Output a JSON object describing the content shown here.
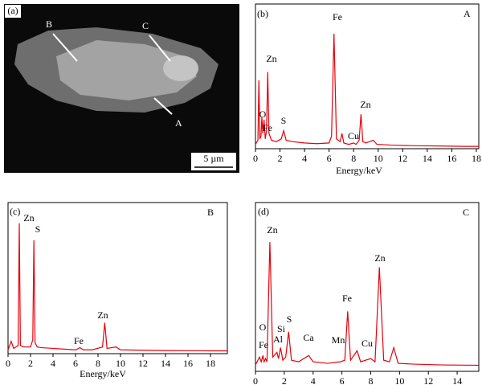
{
  "micrograph": {
    "panel": "(a)",
    "points": [
      "A",
      "B",
      "C"
    ],
    "scale_bar": "5 µm"
  },
  "chart_data": [
    {
      "type": "line",
      "panel": "(b)",
      "title": "A",
      "x_label": "Energy/keV",
      "x": [
        0,
        0.2,
        0.28,
        0.36,
        0.45,
        0.52,
        0.6,
        0.7,
        0.8,
        0.9,
        1.0,
        1.1,
        1.3,
        1.7,
        2.1,
        2.3,
        2.5,
        3,
        4,
        5,
        6,
        6.2,
        6.4,
        6.6,
        6.9,
        7.05,
        7.2,
        7.6,
        8.0,
        8.2,
        8.45,
        8.6,
        8.75,
        9.0,
        9.6,
        9.9,
        11,
        13,
        15,
        17,
        18.2
      ],
      "series": [
        {
          "color": "#e8000b",
          "values": [
            2,
            5,
            49,
            6,
            8,
            22,
            10,
            20,
            6,
            12,
            55,
            10,
            5,
            4,
            6,
            12,
            5,
            4,
            3,
            2.5,
            3,
            8,
            83,
            6,
            4,
            10,
            3,
            2,
            3,
            2,
            5,
            24,
            4,
            3,
            5,
            2,
            1.5,
            1,
            0.8,
            0.5,
            0.5
          ]
        }
      ],
      "peak_labels": [
        "O",
        "Fe",
        "Zn",
        "S",
        "Fe",
        "Cu",
        "Zn"
      ],
      "xlim": [
        0,
        18.2
      ],
      "xticks": [
        0,
        2,
        4,
        6,
        8,
        10,
        12,
        14,
        16,
        18
      ],
      "ylim": [
        0,
        100
      ]
    },
    {
      "type": "line",
      "panel": "(c)",
      "title": "B",
      "x_label": "Energy/keV",
      "x": [
        0,
        0.28,
        0.5,
        0.9,
        1.0,
        1.1,
        1.4,
        2.0,
        2.2,
        2.3,
        2.4,
        2.6,
        3,
        4,
        5,
        6,
        6.4,
        6.7,
        7.5,
        8.4,
        8.6,
        8.8,
        9.6,
        10,
        12,
        14,
        16,
        18,
        19.5
      ],
      "series": [
        {
          "color": "#e8000b",
          "values": [
            1,
            7,
            2,
            4,
            90,
            4,
            3,
            3,
            8,
            78,
            6,
            3,
            2.5,
            2,
            1.5,
            1,
            2.5,
            1,
            1,
            3,
            20,
            2,
            3,
            1,
            0.7,
            0.5,
            0.4,
            0.3,
            0.3
          ]
        }
      ],
      "peak_labels": [
        "Zn",
        "S",
        "Fe",
        "Zn"
      ],
      "xlim": [
        0,
        19.5
      ],
      "xticks": [
        0,
        2,
        4,
        6,
        8,
        10,
        12,
        14,
        16,
        18
      ],
      "ylim": [
        0,
        100
      ]
    },
    {
      "type": "line",
      "panel": "(d)",
      "title": "C",
      "x": [
        0,
        0.28,
        0.4,
        0.52,
        0.6,
        0.7,
        0.8,
        1.0,
        1.2,
        1.49,
        1.6,
        1.74,
        1.9,
        2.1,
        2.3,
        2.5,
        3.0,
        3.7,
        4.0,
        5.0,
        5.9,
        6.2,
        6.4,
        6.6,
        7.05,
        7.3,
        8.0,
        8.3,
        8.6,
        8.9,
        9.3,
        9.6,
        9.9,
        11,
        13,
        15.5
      ],
      "series": [
        {
          "color": "#e8000b",
          "values": [
            1,
            6,
            3,
            7,
            3,
            5,
            3,
            79,
            6,
            9,
            5,
            12,
            4,
            6,
            22,
            4,
            3,
            7,
            3,
            2,
            3,
            4,
            35,
            4,
            10,
            3,
            5,
            3,
            63,
            4,
            3,
            12,
            2,
            1.5,
            1,
            0.8
          ]
        }
      ],
      "peak_labels": [
        "O",
        "Fe",
        "Zn",
        "Al",
        "Si",
        "S",
        "Ca",
        "Mn",
        "Fe",
        "Cu",
        "Zn"
      ],
      "xlim": [
        0,
        15.5
      ],
      "xticks": [
        0,
        2,
        4,
        6,
        8,
        10,
        12,
        14
      ],
      "ylim": [
        0,
        100
      ]
    }
  ]
}
